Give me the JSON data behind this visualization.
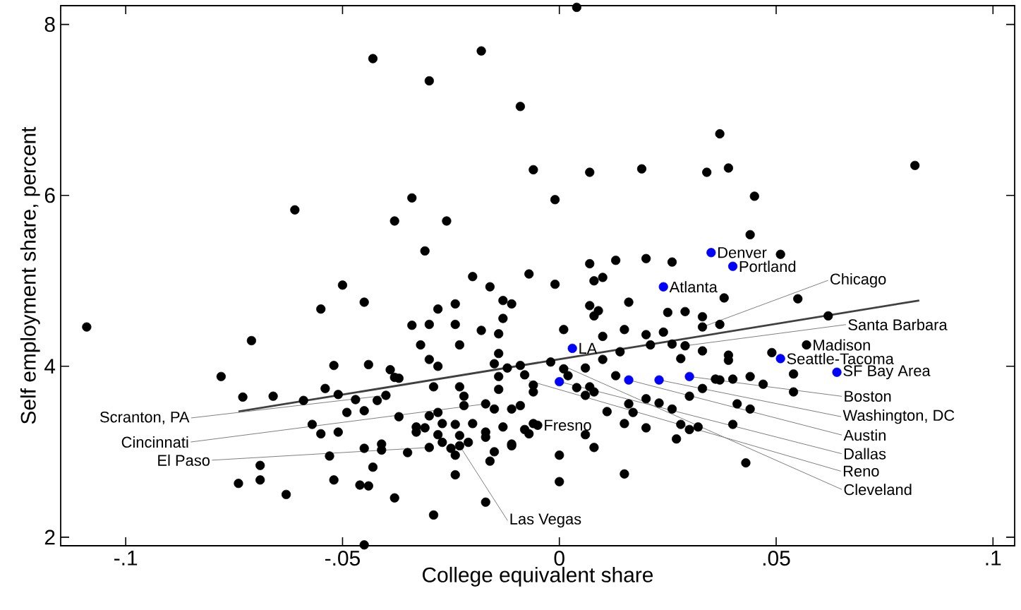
{
  "chart_data": {
    "type": "scatter",
    "xlabel": "College equivalent share",
    "ylabel": "Self employment share, percent",
    "xlim": [
      -0.115,
      0.105
    ],
    "ylim": [
      1.9,
      8.22
    ],
    "xticks": [
      {
        "value": -0.1,
        "label": "-.1"
      },
      {
        "value": -0.05,
        "label": "-.05"
      },
      {
        "value": 0,
        "label": "0"
      },
      {
        "value": 0.05,
        "label": ".05"
      },
      {
        "value": 0.1,
        "label": ".1"
      }
    ],
    "yticks": [
      2,
      4,
      6,
      8
    ],
    "marker": "circle",
    "grid": false,
    "series": [
      {
        "color": "#000000",
        "x": [
          0.004,
          -0.043,
          -0.018,
          -0.03,
          -0.009,
          0.037,
          -0.006,
          0.007,
          0.019,
          0.034,
          0.039,
          0.082,
          -0.034,
          -0.001,
          0.045,
          -0.061,
          -0.038,
          -0.026,
          -0.031,
          0.044,
          0.051,
          0.026,
          0.007,
          0.013,
          0.02,
          -0.007,
          -0.02,
          0.008,
          0.01,
          -0.001,
          -0.05,
          -0.016,
          0.038,
          0.055,
          -0.013,
          -0.045,
          0.007,
          -0.011,
          0.016,
          -0.028,
          -0.024,
          -0.055,
          0.009,
          0.029,
          0.008,
          0.025,
          0.062,
          0.033,
          -0.013,
          -0.034,
          -0.03,
          -0.024,
          0.037,
          -0.109,
          -0.018,
          0.001,
          0.015,
          0.033,
          0.01,
          0.024,
          0.02,
          -0.071,
          -0.023,
          -0.014,
          0.029,
          0.057,
          -0.032,
          0.014,
          -0.014,
          0.021,
          0.049,
          0.026,
          0.033,
          0.039,
          -0.03,
          0.01,
          0.028,
          -0.044,
          -0.052,
          -0.009,
          -0.015,
          -0.002,
          -0.012,
          0.001,
          0.006,
          -0.039,
          -0.028,
          -0.078,
          -0.038,
          -0.008,
          0.002,
          0.036,
          0.04,
          0.054,
          0.013,
          0.039,
          -0.073,
          -0.066,
          -0.059,
          -0.054,
          -0.051,
          -0.047,
          -0.04,
          -0.037,
          -0.029,
          -0.03,
          -0.028,
          -0.023,
          -0.014,
          -0.014,
          -0.006,
          -0.006,
          0.004,
          0.007,
          0.008,
          0.006,
          0.054,
          0.033,
          0.037,
          0.044,
          0.047,
          0.03,
          0.02,
          0.016,
          0.041,
          0.044,
          0.026,
          0.023,
          -0.017,
          -0.022,
          -0.022,
          -0.015,
          -0.011,
          -0.009,
          0.011,
          0.017,
          -0.045,
          -0.042,
          -0.049,
          -0.057,
          -0.055,
          -0.051,
          -0.037,
          -0.033,
          -0.031,
          -0.024,
          -0.027,
          -0.02,
          -0.017,
          -0.013,
          -0.006,
          -0.008,
          0.006,
          0.015,
          0.02,
          0.028,
          0.032,
          0.03,
          0.04,
          -0.028,
          -0.033,
          -0.027,
          -0.023,
          -0.021,
          -0.017,
          -0.011,
          -0.007,
          -0.005,
          -0.03,
          -0.025,
          -0.023,
          -0.015,
          -0.011,
          0.0,
          0.008,
          0.027,
          -0.041,
          -0.045,
          -0.041,
          -0.035,
          -0.053,
          -0.024,
          -0.016,
          0.015,
          0.043,
          -0.043,
          -0.069,
          -0.069,
          -0.052,
          -0.074,
          -0.046,
          -0.044,
          -0.024,
          -0.063,
          -0.038,
          0.0,
          -0.017,
          -0.029,
          -0.045
        ],
        "values": [
          8.2,
          7.6,
          7.69,
          7.34,
          7.04,
          6.72,
          6.3,
          6.27,
          6.31,
          6.27,
          6.32,
          6.35,
          5.97,
          5.95,
          5.99,
          5.83,
          5.7,
          5.7,
          5.35,
          5.54,
          5.31,
          5.22,
          5.2,
          5.24,
          5.26,
          5.08,
          5.05,
          5.0,
          5.04,
          4.96,
          4.95,
          4.93,
          4.8,
          4.79,
          4.77,
          4.75,
          4.71,
          4.73,
          4.75,
          4.67,
          4.73,
          4.67,
          4.65,
          4.64,
          4.59,
          4.63,
          4.59,
          4.58,
          4.56,
          4.48,
          4.49,
          4.49,
          4.49,
          4.46,
          4.42,
          4.43,
          4.43,
          4.46,
          4.35,
          4.4,
          4.37,
          4.3,
          4.25,
          4.38,
          4.24,
          4.25,
          4.25,
          4.17,
          4.15,
          4.25,
          4.16,
          4.26,
          4.18,
          4.13,
          4.08,
          4.08,
          4.09,
          4.02,
          4.01,
          4.01,
          4.03,
          4.05,
          3.98,
          3.97,
          3.98,
          3.96,
          4.0,
          3.88,
          3.87,
          3.9,
          3.89,
          3.85,
          3.85,
          3.91,
          3.89,
          4.07,
          3.64,
          3.65,
          3.6,
          3.74,
          3.67,
          3.61,
          3.66,
          3.86,
          3.76,
          3.42,
          3.46,
          3.76,
          3.73,
          3.88,
          3.78,
          3.7,
          3.75,
          3.76,
          3.7,
          3.66,
          3.7,
          3.74,
          3.84,
          3.88,
          3.79,
          3.65,
          3.62,
          3.56,
          3.56,
          3.5,
          3.5,
          3.57,
          3.56,
          3.54,
          3.65,
          3.5,
          3.5,
          3.54,
          3.47,
          3.46,
          3.48,
          3.6,
          3.46,
          3.32,
          3.21,
          3.23,
          3.41,
          3.29,
          3.28,
          3.32,
          3.33,
          3.33,
          3.23,
          3.29,
          3.33,
          3.26,
          3.2,
          3.33,
          3.28,
          3.32,
          3.29,
          3.26,
          3.32,
          3.2,
          3.23,
          3.11,
          3.19,
          3.11,
          3.17,
          3.09,
          3.21,
          3.31,
          3.05,
          3.04,
          3.07,
          3.0,
          3.07,
          2.96,
          3.05,
          3.15,
          3.09,
          3.04,
          3.02,
          2.99,
          2.95,
          2.96,
          2.89,
          2.74,
          2.87,
          2.82,
          2.84,
          2.67,
          2.67,
          2.63,
          2.61,
          2.6,
          2.73,
          2.5,
          2.46,
          2.65,
          2.41,
          2.26,
          1.91
        ]
      },
      {
        "color": "#0000ff",
        "x": [
          0.035,
          0.04,
          0.024,
          0.003,
          0.0,
          0.016,
          0.023,
          0.03,
          0.051,
          0.064
        ],
        "values": [
          5.33,
          5.17,
          4.93,
          4.21,
          3.82,
          3.84,
          3.84,
          3.88,
          4.09,
          3.93
        ]
      },
      {
        "type": "line",
        "marker": "none",
        "color": "#404040",
        "x": [
          -0.074,
          0.083
        ],
        "values": [
          3.47,
          4.77
        ]
      }
    ],
    "annotations": [
      {
        "text": "Denver",
        "x": 0.035,
        "y": 5.33
      },
      {
        "text": "Portland",
        "x": 0.04,
        "y": 5.17
      },
      {
        "text": "Atlanta",
        "x": 0.024,
        "y": 4.93
      },
      {
        "text": "Chicago",
        "x": 0.033,
        "y": 4.46
      },
      {
        "text": "Santa Barbara",
        "x": 0.029,
        "y": 4.24
      },
      {
        "text": "Madison",
        "x": 0.057,
        "y": 4.25
      },
      {
        "text": "Seattle-Tacoma",
        "x": 0.051,
        "y": 4.09
      },
      {
        "text": "SF Bay Area",
        "x": 0.064,
        "y": 3.93
      },
      {
        "text": "LA",
        "x": 0.003,
        "y": 4.21
      },
      {
        "text": "Cleveland",
        "x": 0.002,
        "y": 3.98
      },
      {
        "text": "Reno",
        "x": -0.007,
        "y": 3.83
      },
      {
        "text": "Dallas",
        "x": 0.0,
        "y": 3.82
      },
      {
        "text": "Austin",
        "x": 0.016,
        "y": 3.84
      },
      {
        "text": "Washington, DC",
        "x": 0.023,
        "y": 3.84
      },
      {
        "text": "Boston",
        "x": 0.03,
        "y": 3.88
      },
      {
        "text": "Scranton, PA",
        "x": -0.04,
        "y": 3.66
      },
      {
        "text": "Cincinnati",
        "x": -0.017,
        "y": 3.56
      },
      {
        "text": "Fresno",
        "x": -0.005,
        "y": 3.31
      },
      {
        "text": "El Paso",
        "x": -0.03,
        "y": 3.05
      },
      {
        "text": "Las Vegas",
        "x": -0.023,
        "y": 3.07
      }
    ]
  }
}
